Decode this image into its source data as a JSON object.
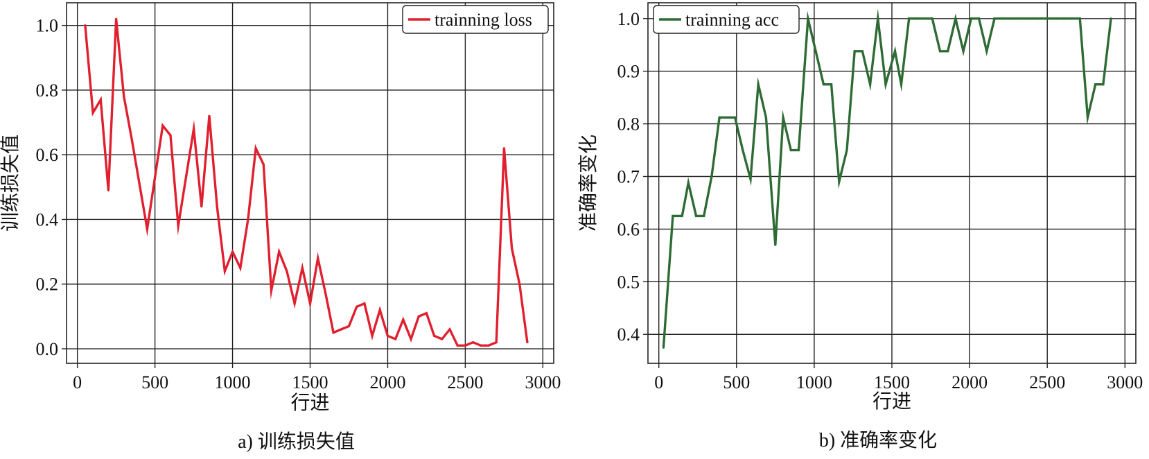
{
  "chart_data": [
    {
      "type": "line",
      "caption": "a) 训练损失值",
      "xlabel": "行进",
      "ylabel": "训练损失值",
      "xlim": [
        -70,
        3070
      ],
      "ylim": [
        -0.045,
        1.07
      ],
      "xticks": [
        0,
        500,
        1000,
        1500,
        2000,
        2500,
        3000
      ],
      "yticks": [
        0.0,
        0.2,
        0.4,
        0.6,
        0.8,
        1.0
      ],
      "ytick_format": 1,
      "grid": true,
      "legend": "top-right",
      "series": [
        {
          "name": "trainning loss",
          "color": "#e0202f",
          "x": [
            50,
            100,
            150,
            200,
            250,
            300,
            350,
            400,
            450,
            500,
            550,
            600,
            650,
            700,
            750,
            800,
            850,
            900,
            950,
            1000,
            1050,
            1100,
            1150,
            1200,
            1250,
            1300,
            1350,
            1400,
            1450,
            1500,
            1550,
            1600,
            1650,
            1700,
            1750,
            1800,
            1850,
            1900,
            1950,
            2000,
            2050,
            2100,
            2150,
            2200,
            2250,
            2300,
            2350,
            2400,
            2450,
            2500,
            2550,
            2600,
            2650,
            2700,
            2750,
            2800,
            2850,
            2900
          ],
          "y": [
            1.0,
            0.73,
            0.77,
            0.49,
            1.02,
            0.78,
            0.65,
            0.51,
            0.37,
            0.53,
            0.69,
            0.66,
            0.38,
            0.53,
            0.68,
            0.44,
            0.72,
            0.44,
            0.24,
            0.3,
            0.25,
            0.4,
            0.62,
            0.57,
            0.18,
            0.3,
            0.24,
            0.14,
            0.25,
            0.14,
            0.28,
            0.17,
            0.05,
            0.06,
            0.07,
            0.13,
            0.14,
            0.04,
            0.12,
            0.04,
            0.03,
            0.09,
            0.03,
            0.1,
            0.11,
            0.04,
            0.03,
            0.06,
            0.01,
            0.01,
            0.02,
            0.01,
            0.01,
            0.02,
            0.62,
            0.31,
            0.2,
            0.02
          ]
        }
      ]
    },
    {
      "type": "line",
      "caption": "b) 准确率变化",
      "xlabel": "行进",
      "ylabel": "准确率变化",
      "xlim": [
        -70,
        3070
      ],
      "ylim": [
        0.345,
        1.03
      ],
      "xticks": [
        0,
        500,
        1000,
        1500,
        2000,
        2500,
        3000
      ],
      "yticks": [
        0.4,
        0.5,
        0.6,
        0.7,
        0.8,
        0.9,
        1.0
      ],
      "ytick_format": 1,
      "grid": true,
      "legend": "top-left",
      "series": [
        {
          "name": "trainning acc",
          "color": "#2f6b35",
          "x": [
            30,
            90,
            150,
            190,
            240,
            290,
            340,
            390,
            440,
            490,
            540,
            590,
            640,
            690,
            750,
            800,
            850,
            900,
            960,
            1010,
            1060,
            1110,
            1160,
            1210,
            1260,
            1310,
            1360,
            1410,
            1460,
            1520,
            1560,
            1610,
            1660,
            1710,
            1760,
            1810,
            1860,
            1910,
            1960,
            2010,
            2060,
            2110,
            2160,
            2210,
            2260,
            2310,
            2360,
            2410,
            2460,
            2510,
            2560,
            2610,
            2660,
            2710,
            2760,
            2810,
            2860,
            2910
          ],
          "y": [
            0.375,
            0.625,
            0.625,
            0.688,
            0.625,
            0.625,
            0.7,
            0.812,
            0.812,
            0.812,
            0.75,
            0.695,
            0.875,
            0.812,
            0.57,
            0.812,
            0.75,
            0.75,
            1.0,
            0.938,
            0.875,
            0.875,
            0.69,
            0.75,
            0.938,
            0.938,
            0.875,
            1.0,
            0.875,
            0.938,
            0.875,
            1.0,
            1.0,
            1.0,
            1.0,
            0.938,
            0.938,
            1.0,
            0.938,
            1.0,
            1.0,
            0.938,
            1.0,
            1.0,
            1.0,
            1.0,
            1.0,
            1.0,
            1.0,
            1.0,
            1.0,
            1.0,
            1.0,
            1.0,
            0.812,
            0.875,
            0.875,
            1.0
          ]
        }
      ]
    }
  ]
}
